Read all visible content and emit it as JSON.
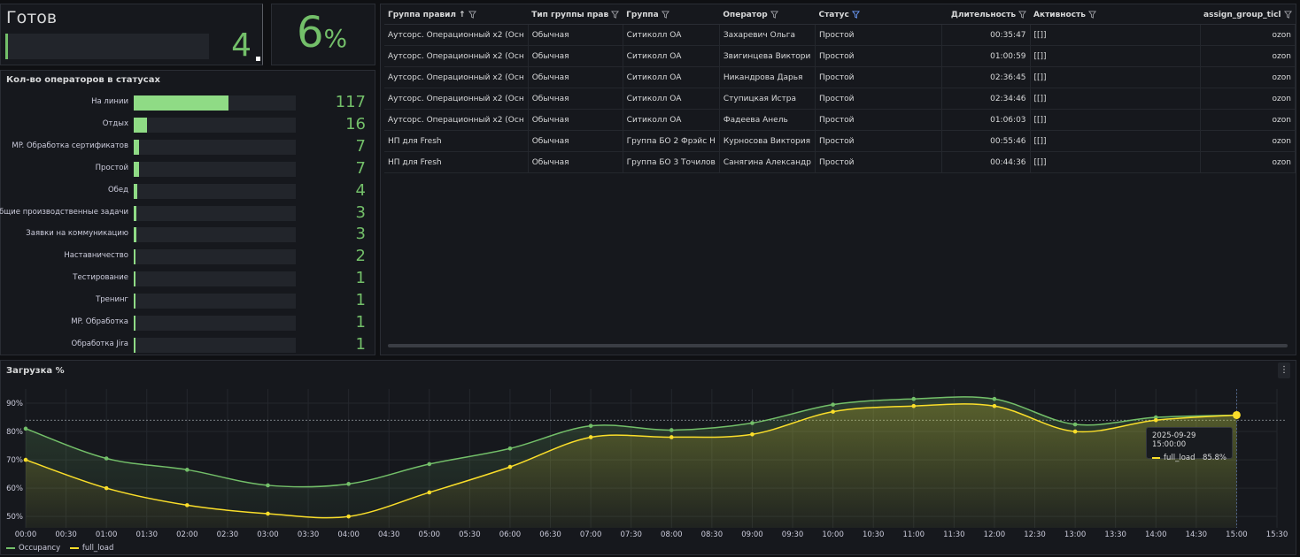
{
  "status_panel": {
    "title": "Готов",
    "value": "4",
    "fill": 0.014
  },
  "percent_panel": {
    "value": "6",
    "unit": "%"
  },
  "operators_panel": {
    "title": "Кол-во операторов в статусах",
    "max": 117,
    "items": [
      {
        "label": "На линии",
        "value": 117
      },
      {
        "label": "Отдых",
        "value": 16
      },
      {
        "label": "MP. Обработка сертификатов",
        "value": 7
      },
      {
        "label": "Простой",
        "value": 7
      },
      {
        "label": "Обед",
        "value": 4
      },
      {
        "label": "Общие производственные задачи",
        "value": 3
      },
      {
        "label": "Заявки на коммуникацию",
        "value": 3
      },
      {
        "label": "Наставничество",
        "value": 2
      },
      {
        "label": "Тестирование",
        "value": 1
      },
      {
        "label": "Тренинг",
        "value": 1
      },
      {
        "label": "MP. Обработка",
        "value": 1
      },
      {
        "label": "Обработка Jira",
        "value": 1
      }
    ]
  },
  "table": {
    "columns": [
      {
        "label": "Группа правил",
        "sorted": true
      },
      {
        "label": "Тип группы прав"
      },
      {
        "label": "Группа"
      },
      {
        "label": "Оператор"
      },
      {
        "label": "Статус",
        "active_filter": true
      },
      {
        "label": "Длительность",
        "align": "right"
      },
      {
        "label": "Активность"
      },
      {
        "label": "assign_group_ticl",
        "align": "right"
      }
    ],
    "rows": [
      [
        "Аутсорс. Операционный x2 (Осн",
        "Обычная",
        "Ситиколл ОА",
        "Захаревич Ольга",
        "Простой",
        "00:35:47",
        "[[]]",
        "ozon"
      ],
      [
        "Аутсорс. Операционный x2 (Осн",
        "Обычная",
        "Ситиколл ОА",
        "Звигинцева Виктори",
        "Простой",
        "01:00:59",
        "[[]]",
        "ozon"
      ],
      [
        "Аутсорс. Операционный x2 (Осн",
        "Обычная",
        "Ситиколл ОА",
        "Никандрова Дарья",
        "Простой",
        "02:36:45",
        "[[]]",
        "ozon"
      ],
      [
        "Аутсорс. Операционный x2 (Осн",
        "Обычная",
        "Ситиколл ОА",
        "Ступицкая Истра",
        "Простой",
        "02:34:46",
        "[[]]",
        "ozon"
      ],
      [
        "Аутсорс. Операционный x2 (Осн",
        "Обычная",
        "Ситиколл ОА",
        "Фадеева Анель",
        "Простой",
        "01:06:03",
        "[[]]",
        "ozon"
      ],
      [
        "НП для Fresh",
        "Обычная",
        "Группа БО 2 Фрэйс Н",
        "Курносова Виктория",
        "Простой",
        "00:55:46",
        "[[]]",
        "ozon"
      ],
      [
        "НП для Fresh",
        "Обычная",
        "Группа БО 3 Точилов",
        "Санягина Александр",
        "Простой",
        "00:44:36",
        "[[]]",
        "ozon"
      ]
    ]
  },
  "load_panel": {
    "title": "Загрузка %",
    "menu_icon": "vertical-dots-icon"
  },
  "chart_data": {
    "type": "line",
    "x": [
      "00:00",
      "01:00",
      "02:00",
      "03:00",
      "04:00",
      "05:00",
      "06:00",
      "07:00",
      "08:00",
      "09:00",
      "10:00",
      "11:00",
      "12:00",
      "13:00",
      "14:00",
      "15:00"
    ],
    "x_ticks": [
      "00:00",
      "00:30",
      "01:00",
      "01:30",
      "02:00",
      "02:30",
      "03:00",
      "03:30",
      "04:00",
      "04:30",
      "05:00",
      "05:30",
      "06:00",
      "06:30",
      "07:00",
      "07:30",
      "08:00",
      "08:30",
      "09:00",
      "09:30",
      "10:00",
      "10:30",
      "11:00",
      "11:30",
      "12:00",
      "12:30",
      "13:00",
      "13:30",
      "14:00",
      "14:30",
      "15:00",
      "15:30"
    ],
    "y_ticks": [
      "50%",
      "60%",
      "70%",
      "80%",
      "90%"
    ],
    "ylim": [
      46,
      95
    ],
    "threshold": 84,
    "series": [
      {
        "name": "Occupancy",
        "color": "#73bf69",
        "values": [
          81,
          70.5,
          66.5,
          61,
          61.5,
          68.5,
          74,
          82,
          80.5,
          83,
          89.5,
          91.5,
          91.5,
          82.5,
          85,
          85.8
        ]
      },
      {
        "name": "full_load",
        "color": "#fade2a",
        "values": [
          70,
          60,
          54,
          51,
          50,
          58.5,
          67.5,
          78,
          78,
          79,
          87,
          89,
          89,
          80,
          84,
          85.8
        ]
      }
    ],
    "tooltip": {
      "time": "2025-09-29 15:00:00",
      "series": "full_load",
      "value": "85.8%"
    }
  }
}
